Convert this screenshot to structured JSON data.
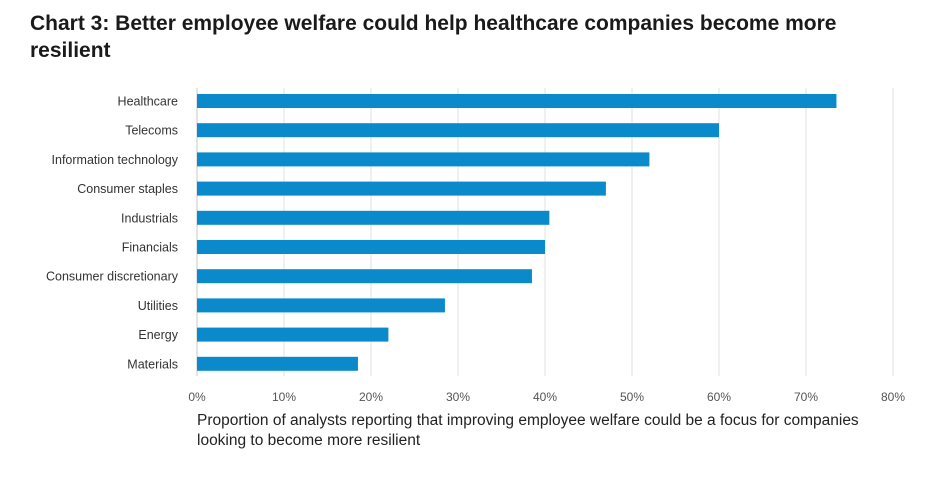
{
  "chart_data": {
    "type": "bar",
    "orientation": "horizontal",
    "title": "Chart 3: Better employee welfare could help healthcare companies become more resilient",
    "xlabel": "Proportion of analysts reporting that improving employee welfare could be a focus for companies looking to become more resilient",
    "ylabel": "",
    "categories": [
      "Healthcare",
      "Telecoms",
      "Information technology",
      "Consumer staples",
      "Industrials",
      "Financials",
      "Consumer discretionary",
      "Utilities",
      "Energy",
      "Materials"
    ],
    "values": [
      73.5,
      60,
      52,
      47,
      40.5,
      40,
      38.5,
      28.5,
      22,
      18.5
    ],
    "xlim": [
      0,
      80
    ],
    "ticks": [
      0,
      10,
      20,
      30,
      40,
      50,
      60,
      70,
      80
    ],
    "tick_labels": [
      "0%",
      "10%",
      "20%",
      "30%",
      "40%",
      "50%",
      "60%",
      "70%",
      "80%"
    ],
    "bar_color": "#0a8acb",
    "grid": true,
    "legend": "none"
  }
}
